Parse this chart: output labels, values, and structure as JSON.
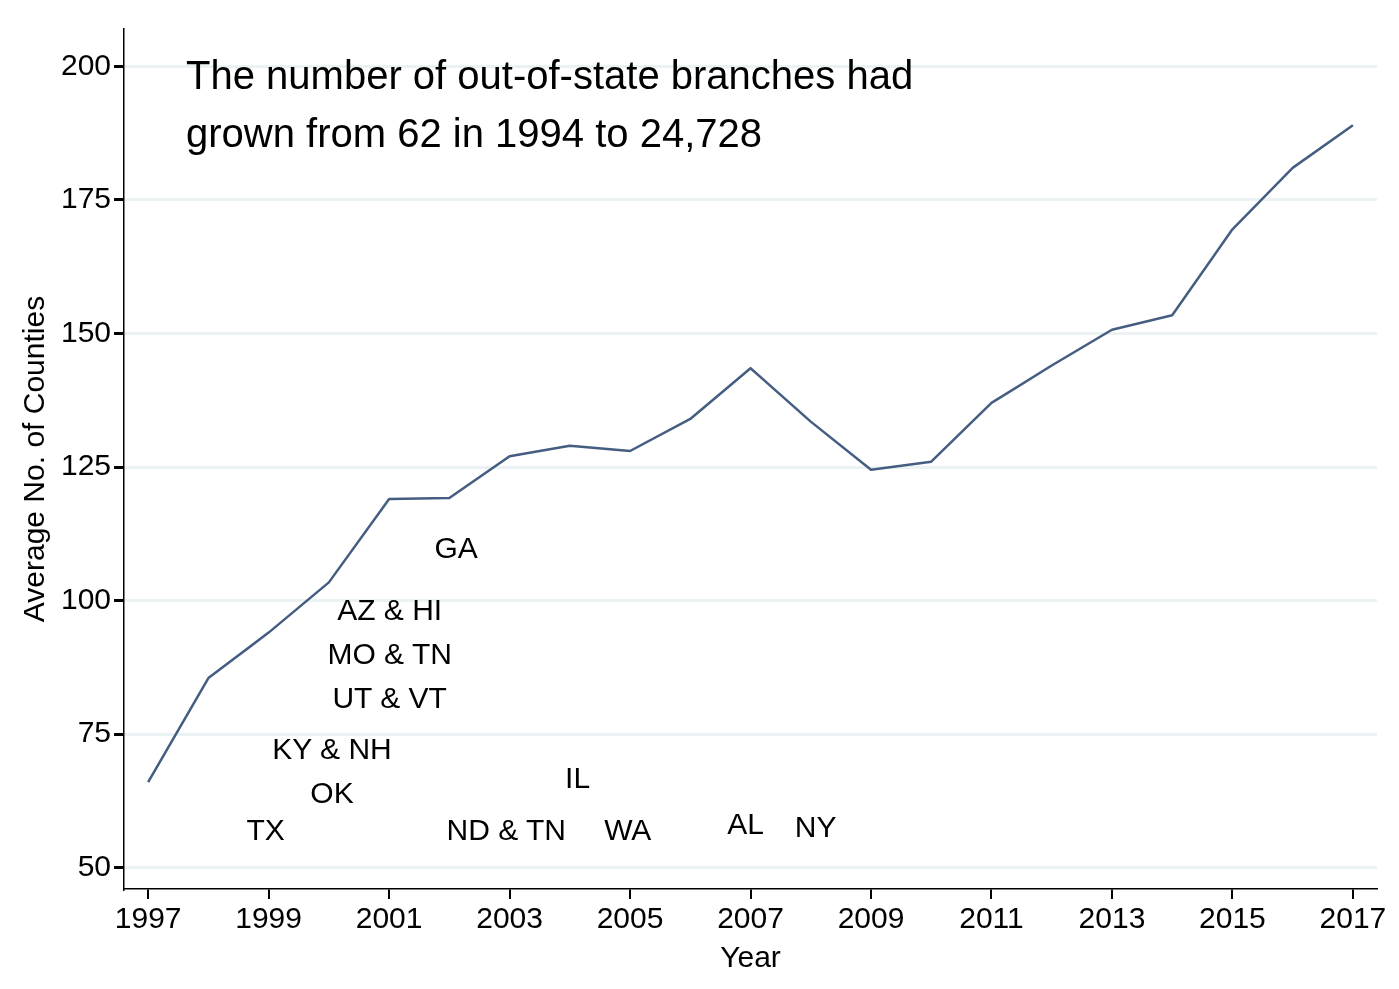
{
  "chart_data": {
    "type": "line",
    "xlabel": "Year",
    "ylabel": "Average No. of Counties",
    "x": [
      1997,
      1998,
      1999,
      2000,
      2001,
      2002,
      2003,
      2004,
      2005,
      2006,
      2007,
      2008,
      2009,
      2010,
      2011,
      2012,
      2013,
      2014,
      2015,
      2016,
      2017
    ],
    "series": [
      {
        "color": "#445d80",
        "values": [
          66,
          85.5,
          94,
          103.4,
          119,
          119.2,
          127,
          129,
          128,
          134,
          143.5,
          133.5,
          124.5,
          126,
          137,
          144,
          150.7,
          153.4,
          169.5,
          181,
          189
        ]
      }
    ],
    "xlim": [
      1996.6,
      2017.4
    ],
    "xticks": [
      1997,
      1999,
      2001,
      2003,
      2005,
      2007,
      2009,
      2011,
      2013,
      2015,
      2017
    ],
    "ylim": [
      46,
      207
    ],
    "yticks": [
      50,
      75,
      100,
      125,
      150,
      175,
      200
    ],
    "grid": "y",
    "legend": false,
    "marker": "none",
    "line_style": "solid",
    "annotations": [
      "The number of out-of-state branches had grown from 62 in 1994 to 24,728",
      "TX",
      "OK",
      "KY & NH",
      "UT & VT",
      "MO & TN",
      "AZ & HI",
      "GA",
      "ND & TN",
      "IL",
      "WA",
      "AL",
      "NY"
    ]
  }
}
